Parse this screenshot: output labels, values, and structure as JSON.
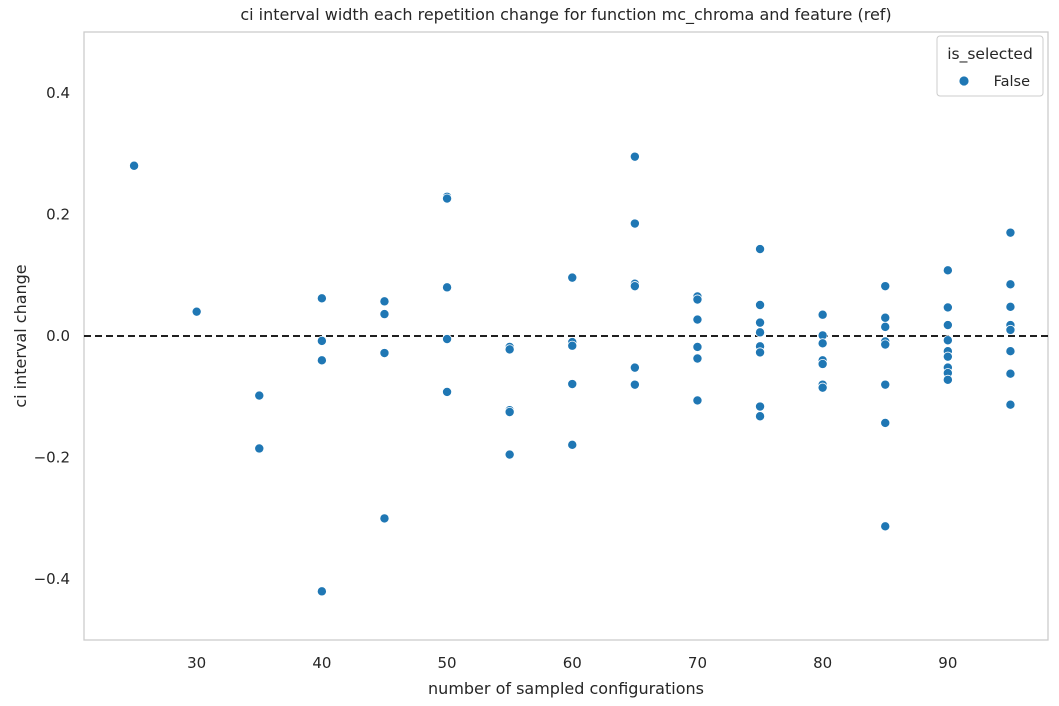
{
  "chart_data": {
    "type": "scatter",
    "title": "ci interval width each repetition change for function mc_chroma and feature (ref)",
    "xlabel": "number of sampled configurations",
    "ylabel": "ci interval change",
    "xlim": [
      21,
      98
    ],
    "ylim": [
      -0.5,
      0.5
    ],
    "xticks": [
      30,
      40,
      50,
      60,
      70,
      80,
      90
    ],
    "yticks": [
      -0.4,
      -0.2,
      0.0,
      0.2,
      0.4
    ],
    "ytick_labels": [
      "−0.4",
      "−0.2",
      "0.0",
      "0.2",
      "0.4"
    ],
    "grid": false,
    "reference_line": {
      "y": 0.0,
      "style": "dashed",
      "color": "#000000"
    },
    "legend": {
      "title": "is_selected",
      "placement": "top-right"
    },
    "series": [
      {
        "name": "False",
        "color": "#1f77b4",
        "points": [
          [
            25,
            0.28
          ],
          [
            30,
            0.04
          ],
          [
            35,
            -0.098
          ],
          [
            35,
            -0.185
          ],
          [
            40,
            0.062
          ],
          [
            40,
            -0.008
          ],
          [
            40,
            -0.04
          ],
          [
            40,
            -0.42
          ],
          [
            45,
            0.057
          ],
          [
            45,
            0.036
          ],
          [
            45,
            -0.028
          ],
          [
            45,
            -0.3
          ],
          [
            50,
            0.229
          ],
          [
            50,
            0.226
          ],
          [
            50,
            0.08
          ],
          [
            50,
            -0.005
          ],
          [
            50,
            -0.092
          ],
          [
            55,
            -0.018
          ],
          [
            55,
            -0.022
          ],
          [
            55,
            -0.122
          ],
          [
            55,
            -0.125
          ],
          [
            55,
            -0.195
          ],
          [
            60,
            0.096
          ],
          [
            60,
            -0.01
          ],
          [
            60,
            -0.016
          ],
          [
            60,
            -0.079
          ],
          [
            60,
            -0.179
          ],
          [
            65,
            0.295
          ],
          [
            65,
            0.185
          ],
          [
            65,
            0.086
          ],
          [
            65,
            0.082
          ],
          [
            65,
            -0.052
          ],
          [
            65,
            -0.08
          ],
          [
            70,
            0.065
          ],
          [
            70,
            0.06
          ],
          [
            70,
            0.027
          ],
          [
            70,
            -0.018
          ],
          [
            70,
            -0.037
          ],
          [
            70,
            -0.106
          ],
          [
            75,
            0.143
          ],
          [
            75,
            0.051
          ],
          [
            75,
            0.022
          ],
          [
            75,
            0.006
          ],
          [
            75,
            -0.017
          ],
          [
            75,
            -0.027
          ],
          [
            75,
            -0.116
          ],
          [
            75,
            -0.132
          ],
          [
            80,
            0.035
          ],
          [
            80,
            0.001
          ],
          [
            80,
            -0.012
          ],
          [
            80,
            -0.04
          ],
          [
            80,
            -0.046
          ],
          [
            80,
            -0.08
          ],
          [
            80,
            -0.085
          ],
          [
            85,
            0.082
          ],
          [
            85,
            0.03
          ],
          [
            85,
            0.015
          ],
          [
            85,
            -0.009
          ],
          [
            85,
            -0.014
          ],
          [
            85,
            -0.08
          ],
          [
            85,
            -0.143
          ],
          [
            85,
            -0.313
          ],
          [
            90,
            0.108
          ],
          [
            90,
            0.047
          ],
          [
            90,
            0.018
          ],
          [
            90,
            -0.007
          ],
          [
            90,
            -0.025
          ],
          [
            90,
            -0.034
          ],
          [
            90,
            -0.052
          ],
          [
            90,
            -0.061
          ],
          [
            90,
            -0.072
          ],
          [
            95,
            0.17
          ],
          [
            95,
            0.085
          ],
          [
            95,
            0.048
          ],
          [
            95,
            0.018
          ],
          [
            95,
            0.01
          ],
          [
            95,
            -0.025
          ],
          [
            95,
            -0.062
          ],
          [
            95,
            -0.113
          ]
        ]
      }
    ]
  }
}
